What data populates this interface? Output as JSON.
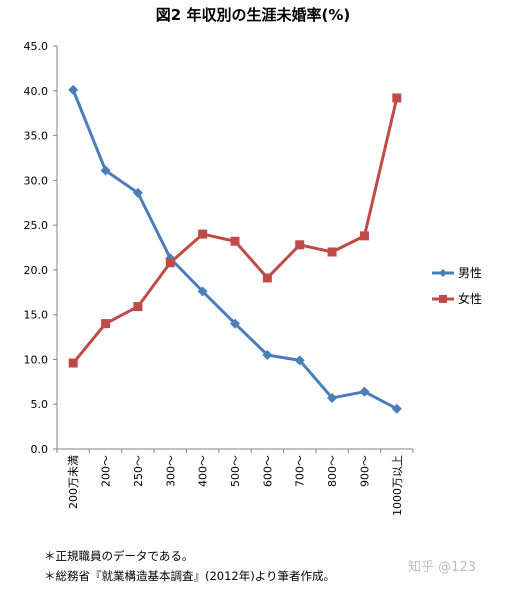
{
  "chart_data": {
    "type": "line",
    "title": "図2 年収別の生涯未婚率(%)",
    "categories": [
      "200万未満",
      "200～",
      "250～",
      "300～",
      "400～",
      "500～",
      "600～",
      "700～",
      "800～",
      "900～",
      "1000万以上"
    ],
    "ylim": [
      0,
      45
    ],
    "yticks": [
      "0.0",
      "5.0",
      "10.0",
      "15.0",
      "20.0",
      "25.0",
      "30.0",
      "35.0",
      "40.0",
      "45.0"
    ],
    "grid": false,
    "legend_position": "right",
    "series": [
      {
        "name": "男性",
        "color": "#4a7ebb",
        "marker": "diamond",
        "values": [
          40.1,
          31.1,
          28.6,
          21.3,
          17.6,
          14.0,
          10.5,
          9.9,
          5.7,
          6.4,
          4.5
        ]
      },
      {
        "name": "女性",
        "color": "#be4b48",
        "marker": "square",
        "values": [
          9.6,
          14.0,
          15.9,
          20.8,
          24.0,
          23.2,
          19.1,
          22.8,
          22.0,
          23.8,
          39.2
        ]
      }
    ]
  },
  "notes": [
    "＊正規職員のデータである。",
    "＊総務省『就業構造基本調査』(2012年)より筆者作成。"
  ],
  "watermark": "知乎 @123"
}
